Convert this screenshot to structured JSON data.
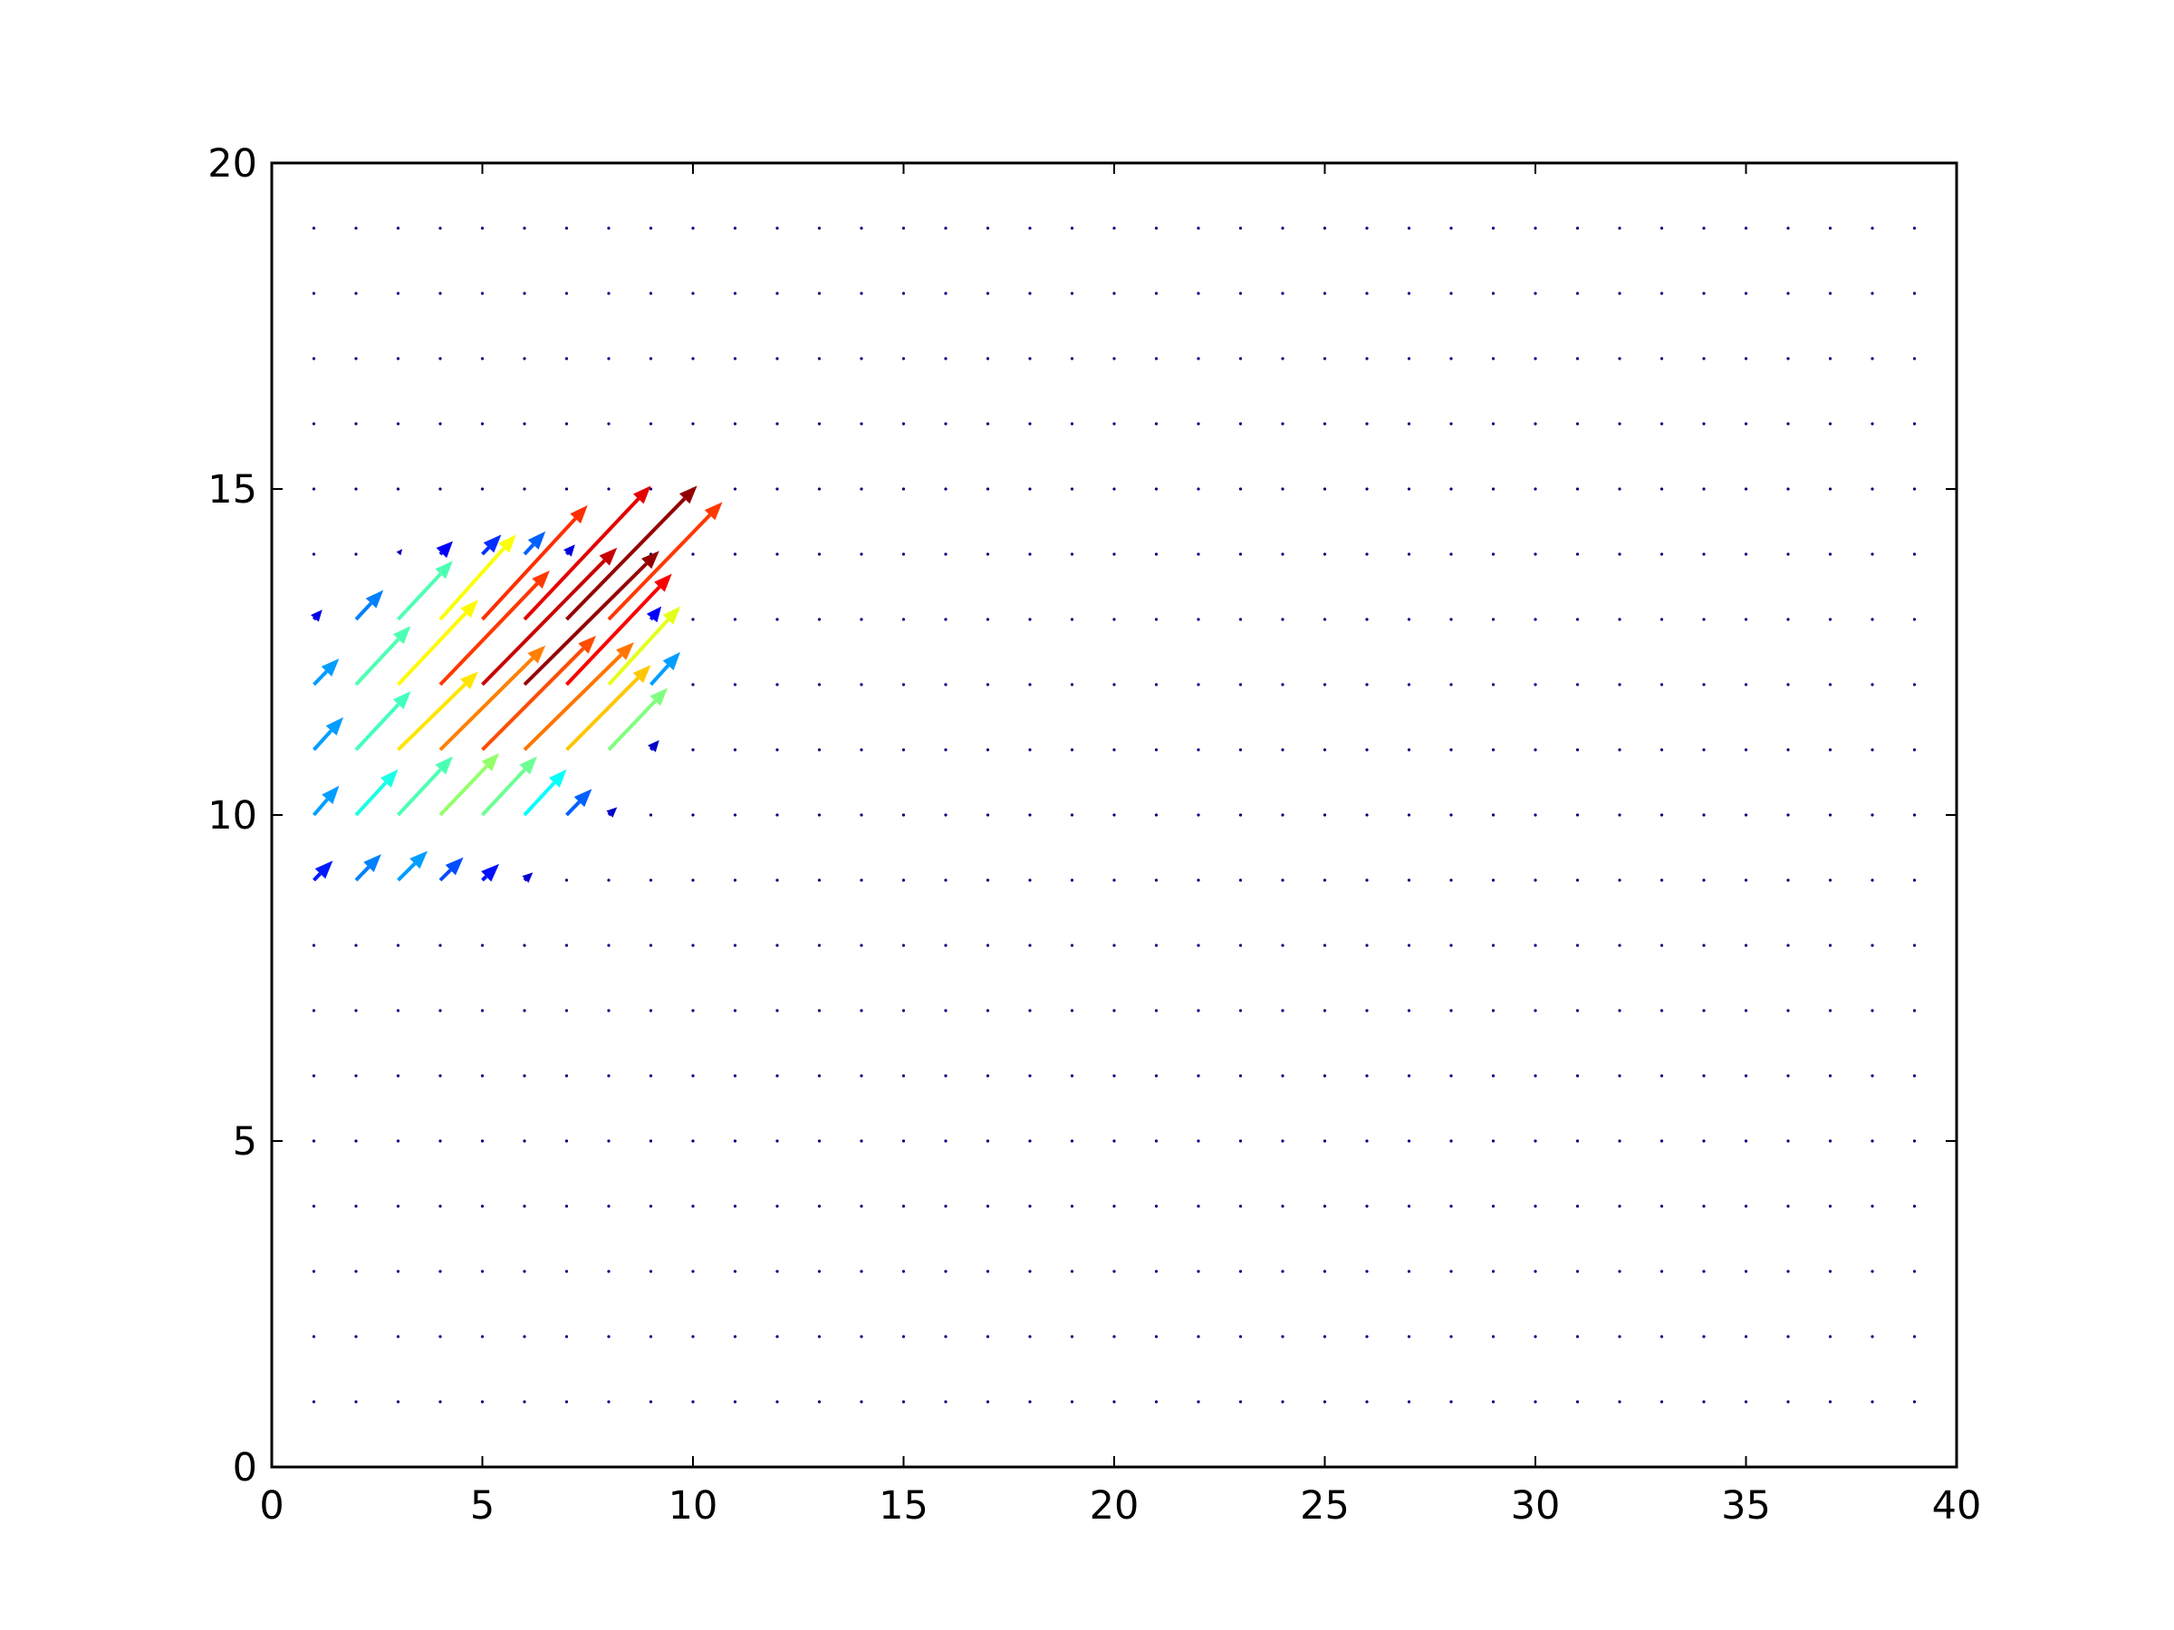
{
  "chart_data": {
    "type": "quiver",
    "title": "",
    "xlabel": "",
    "ylabel": "",
    "xlim": [
      0,
      40
    ],
    "ylim": [
      0,
      20
    ],
    "xticks": [
      "0",
      "5",
      "10",
      "15",
      "20",
      "25",
      "30",
      "35",
      "40"
    ],
    "yticks": [
      "0",
      "5",
      "10",
      "15",
      "20"
    ],
    "grid": false,
    "colormap": "jet",
    "grid_points": {
      "x": [
        1,
        39
      ],
      "y": [
        1,
        19
      ],
      "step": 1
    },
    "arrows": [
      {
        "x": 1,
        "y": 9,
        "u": 0.45,
        "v": 0.3,
        "m": 0.15
      },
      {
        "x": 2,
        "y": 9,
        "u": 0.6,
        "v": 0.4,
        "m": 0.25
      },
      {
        "x": 3,
        "y": 9,
        "u": 0.7,
        "v": 0.45,
        "m": 0.28
      },
      {
        "x": 4,
        "y": 9,
        "u": 0.55,
        "v": 0.35,
        "m": 0.2
      },
      {
        "x": 5,
        "y": 9,
        "u": 0.4,
        "v": 0.25,
        "m": 0.14
      },
      {
        "x": 6,
        "y": 9,
        "u": 0.2,
        "v": 0.12,
        "m": 0.08
      },
      {
        "x": 1,
        "y": 10,
        "u": 0.6,
        "v": 0.45,
        "m": 0.28
      },
      {
        "x": 2,
        "y": 10,
        "u": 1.0,
        "v": 0.7,
        "m": 0.4
      },
      {
        "x": 3,
        "y": 10,
        "u": 1.3,
        "v": 0.9,
        "m": 0.45
      },
      {
        "x": 4,
        "y": 10,
        "u": 1.4,
        "v": 0.95,
        "m": 0.52
      },
      {
        "x": 5,
        "y": 10,
        "u": 1.3,
        "v": 0.9,
        "m": 0.48
      },
      {
        "x": 6,
        "y": 10,
        "u": 1.0,
        "v": 0.7,
        "m": 0.38
      },
      {
        "x": 7,
        "y": 10,
        "u": 0.6,
        "v": 0.4,
        "m": 0.22
      },
      {
        "x": 8,
        "y": 10,
        "u": 0.2,
        "v": 0.12,
        "m": 0.07
      },
      {
        "x": 1,
        "y": 11,
        "u": 0.7,
        "v": 0.5,
        "m": 0.28
      },
      {
        "x": 2,
        "y": 11,
        "u": 1.3,
        "v": 0.9,
        "m": 0.44
      },
      {
        "x": 3,
        "y": 11,
        "u": 1.9,
        "v": 1.2,
        "m": 0.65
      },
      {
        "x": 4,
        "y": 11,
        "u": 2.5,
        "v": 1.6,
        "m": 0.75
      },
      {
        "x": 5,
        "y": 11,
        "u": 2.7,
        "v": 1.75,
        "m": 0.8
      },
      {
        "x": 6,
        "y": 11,
        "u": 2.6,
        "v": 1.65,
        "m": 0.76
      },
      {
        "x": 7,
        "y": 11,
        "u": 2.0,
        "v": 1.3,
        "m": 0.68
      },
      {
        "x": 8,
        "y": 11,
        "u": 1.4,
        "v": 0.95,
        "m": 0.5
      },
      {
        "x": 9,
        "y": 11,
        "u": 0.2,
        "v": 0.15,
        "m": 0.07
      },
      {
        "x": 1,
        "y": 12,
        "u": 0.6,
        "v": 0.4,
        "m": 0.28
      },
      {
        "x": 2,
        "y": 12,
        "u": 1.3,
        "v": 0.9,
        "m": 0.45
      },
      {
        "x": 3,
        "y": 12,
        "u": 1.9,
        "v": 1.3,
        "m": 0.63
      },
      {
        "x": 4,
        "y": 12,
        "u": 2.6,
        "v": 1.75,
        "m": 0.82
      },
      {
        "x": 5,
        "y": 12,
        "u": 3.2,
        "v": 2.1,
        "m": 0.93
      },
      {
        "x": 6,
        "y": 12,
        "u": 3.2,
        "v": 2.05,
        "m": 0.98
      },
      {
        "x": 7,
        "y": 12,
        "u": 2.5,
        "v": 1.7,
        "m": 0.88
      },
      {
        "x": 8,
        "y": 12,
        "u": 1.7,
        "v": 1.2,
        "m": 0.6
      },
      {
        "x": 9,
        "y": 12,
        "u": 0.7,
        "v": 0.5,
        "m": 0.28
      },
      {
        "x": 1,
        "y": 13,
        "u": 0.2,
        "v": 0.15,
        "m": 0.1
      },
      {
        "x": 2,
        "y": 13,
        "u": 0.65,
        "v": 0.45,
        "m": 0.25
      },
      {
        "x": 3,
        "y": 13,
        "u": 1.3,
        "v": 0.9,
        "m": 0.45
      },
      {
        "x": 4,
        "y": 13,
        "u": 1.8,
        "v": 1.2,
        "m": 0.62
      },
      {
        "x": 5,
        "y": 13,
        "u": 2.5,
        "v": 1.65,
        "m": 0.83
      },
      {
        "x": 6,
        "y": 13,
        "u": 3.0,
        "v": 2.0,
        "m": 0.92
      },
      {
        "x": 7,
        "y": 13,
        "u": 3.1,
        "v": 2.0,
        "m": 0.98
      },
      {
        "x": 8,
        "y": 13,
        "u": 2.7,
        "v": 1.8,
        "m": 0.85
      },
      {
        "x": 9,
        "y": 13,
        "u": 0.25,
        "v": 0.2,
        "m": 0.12
      },
      {
        "x": 3,
        "y": 14,
        "u": 0.1,
        "v": 0.08,
        "m": 0.05
      },
      {
        "x": 4,
        "y": 14,
        "u": 0.3,
        "v": 0.2,
        "m": 0.12
      },
      {
        "x": 5,
        "y": 14,
        "u": 0.45,
        "v": 0.3,
        "m": 0.17
      },
      {
        "x": 6,
        "y": 14,
        "u": 0.5,
        "v": 0.35,
        "m": 0.22
      },
      {
        "x": 7,
        "y": 14,
        "u": 0.2,
        "v": 0.15,
        "m": 0.09
      }
    ],
    "long_arrows": [
      {
        "x": 4,
        "y": 13,
        "u": 1.8,
        "v": 1.3,
        "m": 0.62
      },
      {
        "x": 5,
        "y": 13,
        "u": 2.5,
        "v": 1.75,
        "m": 0.83
      },
      {
        "x": 6,
        "y": 13,
        "u": 3.0,
        "v": 2.05,
        "m": 0.9
      },
      {
        "x": 7,
        "y": 13,
        "u": 3.1,
        "v": 2.05,
        "m": 0.98
      },
      {
        "x": 8,
        "y": 13,
        "u": 2.7,
        "v": 1.8,
        "m": 0.82
      }
    ]
  }
}
